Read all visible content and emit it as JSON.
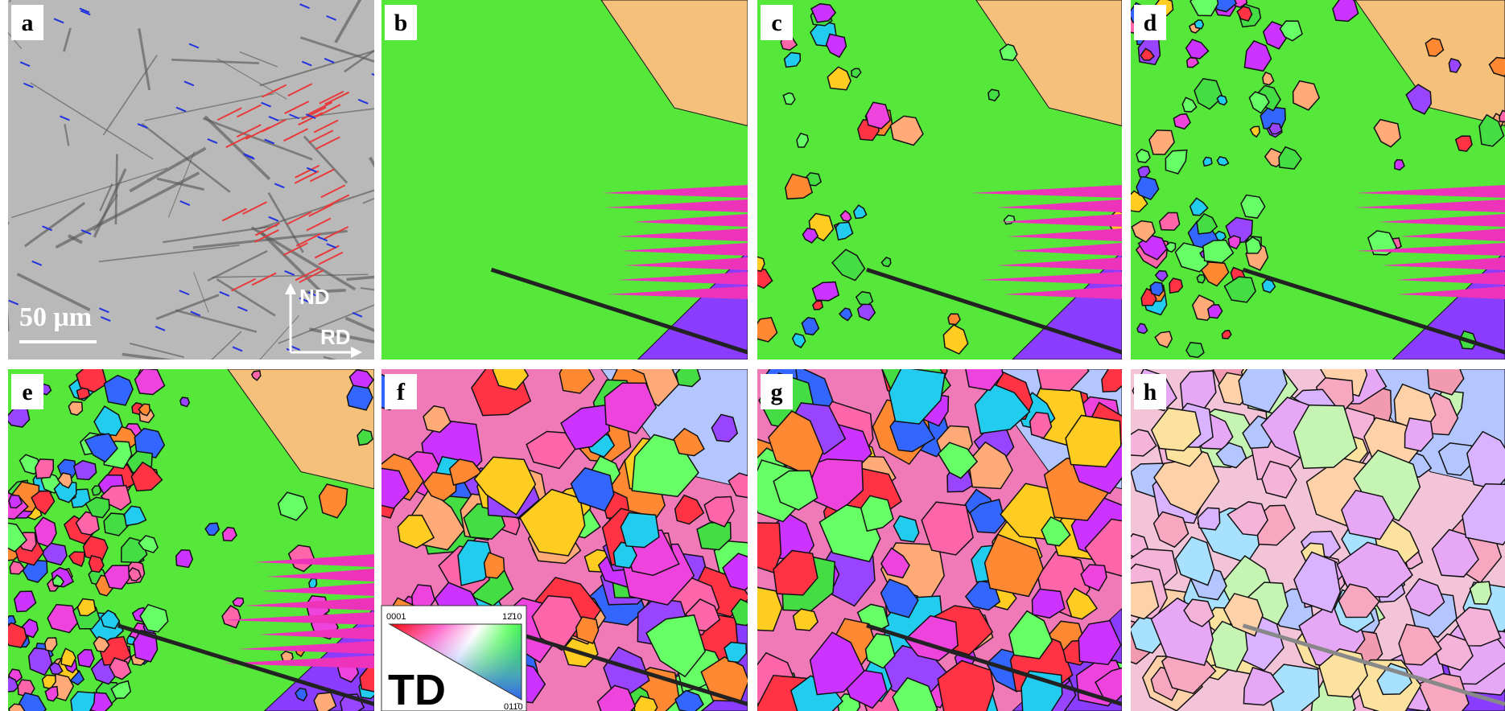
{
  "panels": [
    {
      "label": "a"
    },
    {
      "label": "b"
    },
    {
      "label": "c"
    },
    {
      "label": "d"
    },
    {
      "label": "e"
    },
    {
      "label": "f"
    },
    {
      "label": "g"
    },
    {
      "label": "h"
    }
  ],
  "scale_bar": "50 μm",
  "axes": {
    "vertical": "ND",
    "horizontal": "RD"
  },
  "legend": {
    "title": "TD",
    "top_left": "0001",
    "top_right": "12̄10",
    "bottom": "011̄0"
  }
}
